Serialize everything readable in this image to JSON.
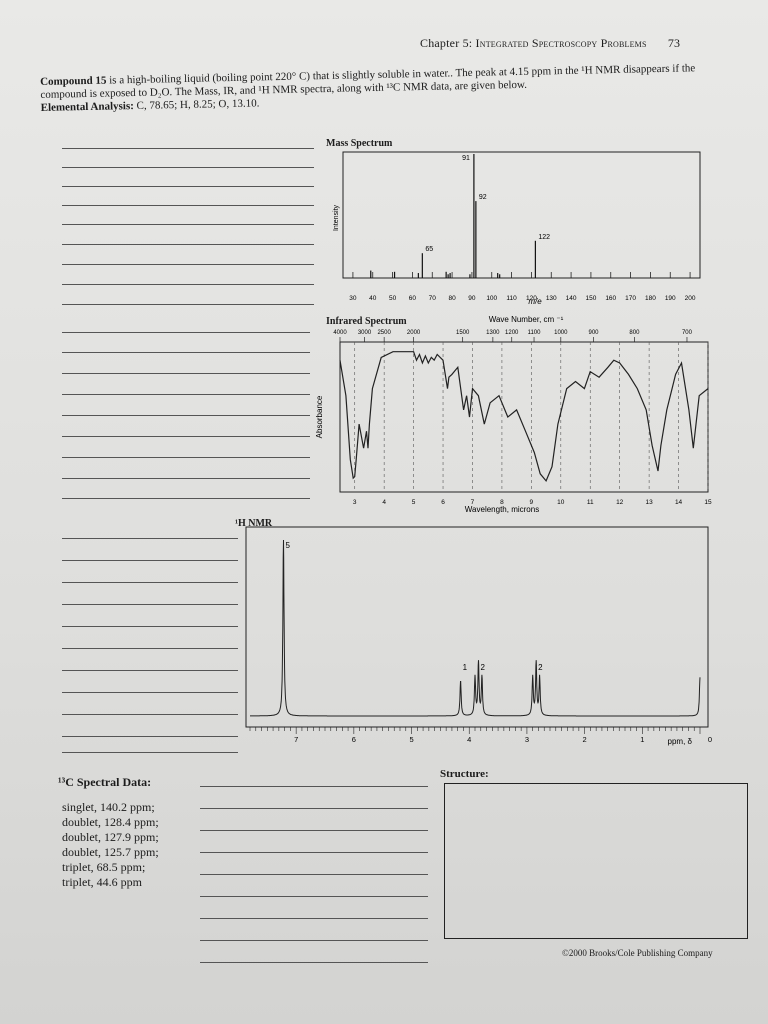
{
  "header": {
    "chapter": "Chapter 5:",
    "title": "Integrated Spectroscopy Problems",
    "page": "73"
  },
  "intro": {
    "compound": "Compound 15",
    "text1": " is a high-boiling liquid (boiling point 220° C) that is slightly soluble in water.. The peak at 4.15 ppm in the ",
    "h1nmr": "¹H NMR",
    "text2": " disappears if the compound is exposed to D₂O.  The Mass, IR, and ¹H NMR spectra, along with ¹³C NMR data, are given below.",
    "ea_label": "Elemental Analysis:",
    "ea_text": " C, 78.65; H, 8.25; O, 13.10."
  },
  "mass": {
    "label": "Mass Spectrum",
    "ylabel": "Intensity",
    "xlabel": "m/e"
  },
  "ir": {
    "label": "Infrared Spectrum",
    "top_label": "Wave Number, cm ⁻¹",
    "bottom_label": "Wavelength, microns",
    "ylabel": "Absorbance",
    "wavenumber_ticks": [
      "4000",
      "3000",
      "2500",
      "2000",
      "1500",
      "1300",
      "1200",
      "1100",
      "1000",
      "900",
      "800",
      "700"
    ],
    "micron_ticks": [
      "3",
      "4",
      "5",
      "6",
      "7",
      "8",
      "9",
      "10",
      "11",
      "12",
      "13",
      "14",
      "15"
    ]
  },
  "nmr": {
    "label": "¹H NMR",
    "xlabel": "ppm, δ",
    "ticks": [
      "7",
      "6",
      "5",
      "4",
      "3",
      "2",
      "1",
      "0"
    ]
  },
  "c13": {
    "title": "¹³C Spectral Data:",
    "lines": [
      "singlet, 140.2 ppm;",
      "doublet, 128.4 ppm;",
      "doublet, 127.9 ppm;",
      "doublet, 125.7 ppm;",
      "triplet, 68.5 ppm;",
      "triplet, 44.6 ppm"
    ]
  },
  "structure_label": "Structure:",
  "copyright": "©2000 Brooks/Cole Publishing Company",
  "chart_data": [
    {
      "type": "bar",
      "title": "Mass Spectrum",
      "xlabel": "m/e",
      "ylabel": "Intensity",
      "xlim": [
        25,
        205
      ],
      "xticks": [
        30,
        40,
        50,
        60,
        70,
        80,
        90,
        100,
        110,
        120,
        130,
        140,
        150,
        160,
        170,
        180,
        190,
        200
      ],
      "x": [
        39,
        51,
        63,
        65,
        77,
        78,
        79,
        89,
        91,
        92,
        103,
        104,
        122
      ],
      "values": [
        6,
        5,
        4,
        20,
        5,
        3,
        4,
        3,
        100,
        62,
        4,
        3,
        30
      ],
      "peak_labels": [
        {
          "x": 91,
          "text": "91"
        },
        {
          "x": 92,
          "text": "92"
        },
        {
          "x": 65,
          "text": "65"
        },
        {
          "x": 122,
          "text": "122"
        }
      ]
    },
    {
      "type": "line",
      "title": "Infrared Spectrum",
      "xlabel": "Wavelength, microns",
      "ylabel": "Absorbance",
      "xlim": [
        2.5,
        15
      ],
      "x": [
        2.5,
        2.7,
        2.85,
        2.95,
        3.0,
        3.05,
        3.15,
        3.3,
        3.4,
        3.45,
        3.5,
        3.6,
        3.9,
        4.3,
        5.0,
        5.1,
        5.2,
        5.3,
        5.4,
        5.5,
        5.6,
        5.7,
        5.8,
        6.0,
        6.15,
        6.2,
        6.3,
        6.5,
        6.7,
        6.8,
        6.9,
        7.0,
        7.2,
        7.4,
        7.6,
        7.9,
        8.2,
        8.5,
        8.8,
        9.1,
        9.3,
        9.5,
        9.7,
        9.9,
        10.2,
        10.5,
        10.8,
        11.0,
        11.3,
        11.6,
        11.8,
        12.0,
        12.3,
        12.6,
        12.9,
        13.1,
        13.3,
        13.4,
        13.6,
        13.9,
        14.1,
        14.35,
        14.5,
        14.7,
        15.0
      ],
      "y": [
        0.1,
        0.35,
        0.8,
        0.93,
        0.92,
        0.8,
        0.55,
        0.72,
        0.6,
        0.72,
        0.55,
        0.3,
        0.08,
        0.04,
        0.04,
        0.1,
        0.06,
        0.12,
        0.07,
        0.12,
        0.08,
        0.1,
        0.06,
        0.1,
        0.3,
        0.22,
        0.2,
        0.15,
        0.45,
        0.35,
        0.5,
        0.3,
        0.35,
        0.55,
        0.4,
        0.35,
        0.5,
        0.45,
        0.6,
        0.75,
        0.9,
        0.95,
        0.85,
        0.55,
        0.3,
        0.25,
        0.3,
        0.18,
        0.22,
        0.15,
        0.1,
        0.12,
        0.2,
        0.3,
        0.45,
        0.7,
        0.88,
        0.7,
        0.45,
        0.2,
        0.12,
        0.45,
        0.72,
        0.35,
        0.3
      ]
    },
    {
      "type": "line",
      "title": "¹H NMR",
      "xlabel": "ppm, δ",
      "xlim": [
        7.8,
        0
      ],
      "peaks": [
        {
          "ppm": 7.22,
          "height": 1.0
        },
        {
          "ppm": 4.15,
          "height": 0.2
        },
        {
          "ppm": 3.9,
          "height": 0.22
        },
        {
          "ppm": 3.84,
          "height": 0.3
        },
        {
          "ppm": 3.78,
          "height": 0.22
        },
        {
          "ppm": 2.9,
          "height": 0.22
        },
        {
          "ppm": 2.84,
          "height": 0.3
        },
        {
          "ppm": 2.78,
          "height": 0.22
        },
        {
          "ppm": 0.0,
          "height": 0.22
        }
      ],
      "integrations": [
        {
          "ppm": 7.22,
          "text": "5"
        },
        {
          "ppm": 4.15,
          "text": "1"
        },
        {
          "ppm": 3.84,
          "text": "2"
        },
        {
          "ppm": 2.84,
          "text": "2"
        }
      ]
    }
  ]
}
